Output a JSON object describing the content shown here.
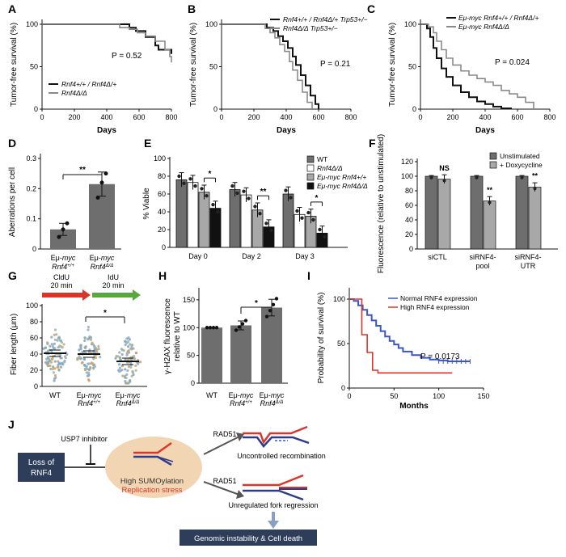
{
  "panels": {
    "A": {
      "label": "A"
    },
    "B": {
      "label": "B"
    },
    "C": {
      "label": "C"
    },
    "D": {
      "label": "D"
    },
    "E": {
      "label": "E"
    },
    "F": {
      "label": "F"
    },
    "G": {
      "label": "G"
    },
    "H": {
      "label": "H"
    },
    "I": {
      "label": "I"
    },
    "J": {
      "label": "J"
    }
  },
  "colors": {
    "black": "#111111",
    "gray": "#8a8a8a",
    "red": "#d9362b",
    "blue": "#3a57c4",
    "peach": "#f2d6b3",
    "navy": "#2d3d5a",
    "green": "#5aa83d"
  },
  "chart_data": [
    {
      "id": "A",
      "type": "line",
      "subtype": "kaplan-meier",
      "ylabel": "Tumor-free survival (%)",
      "xlabel": "Days",
      "xlim": [
        0,
        800
      ],
      "ylim": [
        0,
        100
      ],
      "xticks": [
        "0",
        "200",
        "400",
        "600",
        "800"
      ],
      "yticks": [
        "0",
        "50",
        "100"
      ],
      "pvalue": "P = 0.52",
      "series": [
        {
          "name": "Rnf4+/+ / Rnf4Δ/+",
          "color": "#111111",
          "x": [
            0,
            500,
            540,
            580,
            640,
            700,
            720,
            800
          ],
          "y": [
            100,
            100,
            96,
            92,
            85,
            75,
            70,
            65
          ]
        },
        {
          "name": "Rnf4Δ/Δ",
          "color": "#8a8a8a",
          "x": [
            0,
            420,
            480,
            540,
            590,
            640,
            700,
            760,
            790,
            800
          ],
          "y": [
            100,
            100,
            96,
            94,
            90,
            86,
            80,
            70,
            62,
            55
          ]
        }
      ]
    },
    {
      "id": "B",
      "type": "line",
      "subtype": "kaplan-meier",
      "ylabel": "Tumor-free survival (%)",
      "xlabel": "Days",
      "xlim": [
        0,
        800
      ],
      "ylim": [
        0,
        100
      ],
      "xticks": [
        "0",
        "200",
        "400",
        "600",
        "800"
      ],
      "yticks": [
        "0",
        "50",
        "100"
      ],
      "pvalue": "P = 0.21",
      "series": [
        {
          "name": "Rnf4+/+ / Rnf4Δ/+ Trp53+/−",
          "color": "#111111",
          "x": [
            0,
            240,
            280,
            320,
            350,
            380,
            410,
            440,
            460,
            490,
            520,
            550,
            580,
            600
          ],
          "y": [
            100,
            100,
            96,
            92,
            86,
            80,
            72,
            62,
            52,
            40,
            28,
            16,
            6,
            0
          ]
        },
        {
          "name": "Rnf4Δ/Δ Trp53+/−",
          "color": "#8a8a8a",
          "x": [
            0,
            230,
            270,
            300,
            330,
            360,
            390,
            420,
            440,
            470,
            500,
            530,
            560
          ],
          "y": [
            100,
            100,
            95,
            90,
            84,
            76,
            68,
            56,
            46,
            34,
            20,
            8,
            0
          ]
        }
      ]
    },
    {
      "id": "C",
      "type": "line",
      "subtype": "kaplan-meier",
      "ylabel": "Tumor-free survival (%)",
      "xlabel": "Days",
      "xlim": [
        0,
        800
      ],
      "ylim": [
        0,
        100
      ],
      "xticks": [
        "0",
        "200",
        "400",
        "600",
        "800"
      ],
      "yticks": [
        "0",
        "50",
        "100"
      ],
      "pvalue": "P = 0.024",
      "series": [
        {
          "name": "Eμ-myc Rnf4+/+ / Rnf4Δ/+",
          "color": "#111111",
          "x": [
            0,
            40,
            60,
            80,
            100,
            130,
            160,
            200,
            250,
            300,
            350,
            400,
            450,
            500,
            560
          ],
          "y": [
            100,
            95,
            85,
            72,
            60,
            48,
            38,
            28,
            20,
            14,
            9,
            6,
            3,
            1,
            0
          ]
        },
        {
          "name": "Eμ-myc Rnf4Δ/Δ",
          "color": "#8a8a8a",
          "x": [
            0,
            50,
            80,
            100,
            130,
            160,
            200,
            250,
            300,
            350,
            400,
            450,
            500,
            550,
            600,
            650,
            700
          ],
          "y": [
            100,
            97,
            90,
            80,
            70,
            60,
            52,
            45,
            40,
            36,
            32,
            28,
            22,
            18,
            14,
            8,
            0
          ]
        }
      ]
    },
    {
      "id": "D",
      "type": "bar",
      "ylabel": "Aberrations per cell",
      "ylim": [
        0,
        0.3
      ],
      "yticks": [
        "0",
        "0.1",
        "0.2",
        "0.3"
      ],
      "categories": [
        "Eμ-myc Rnf4+/+",
        "Eμ-myc Rnf4Δ/Δ"
      ],
      "values": [
        0.065,
        0.215
      ],
      "errors": [
        0.02,
        0.04
      ],
      "points": [
        [
          0.04,
          0.065,
          0.085
        ],
        [
          0.17,
          0.22,
          0.25
        ]
      ],
      "significance": "**"
    },
    {
      "id": "E",
      "type": "bar",
      "ylabel": "% Viable",
      "ylim": [
        0,
        100
      ],
      "yticks": [
        "0",
        "20",
        "40",
        "60",
        "80",
        "100"
      ],
      "categories": [
        "Day 0",
        "Day 2",
        "Day 3"
      ],
      "series": [
        {
          "name": "WT",
          "color": "#6e6e6e",
          "values": [
            76,
            65,
            60
          ]
        },
        {
          "name": "Rnf4Δ/Δ",
          "color": "#ffffff",
          "values": [
            73,
            59,
            37
          ]
        },
        {
          "name": "Eμ-myc Rnf4+/+",
          "color": "#a8a8a8",
          "values": [
            62,
            42,
            35
          ]
        },
        {
          "name": "Eμ-myc Rnf4Δ/Δ",
          "color": "#111111",
          "values": [
            44,
            23,
            16
          ]
        }
      ],
      "significance": [
        "*",
        "**",
        "*"
      ]
    },
    {
      "id": "F",
      "type": "bar",
      "ylabel": "Fluorescence (relative to unstimulated)",
      "ylim": [
        0,
        120
      ],
      "yticks": [
        "0",
        "20",
        "40",
        "60",
        "80",
        "100",
        "120"
      ],
      "categories": [
        "siCTL",
        "siRNF4-pool",
        "siRNF4-UTR"
      ],
      "series": [
        {
          "name": "Unstimulated",
          "color": "#6e6e6e",
          "values": [
            100,
            100,
            100
          ]
        },
        {
          "name": "+ Doxycycline",
          "color": "#a8a8a8",
          "values": [
            96,
            66,
            85
          ]
        }
      ],
      "significance": [
        "NS",
        "**",
        "**"
      ]
    },
    {
      "id": "G",
      "type": "scatter",
      "subtype": "dot-plot",
      "ylabel": "Fiber length (μm)",
      "ylim": [
        0,
        100
      ],
      "yticks": [
        "0",
        "20",
        "40",
        "60",
        "80",
        "100"
      ],
      "categories": [
        "WT",
        "Eμ-myc Rnf4+/+",
        "Eμ-myc Rnf4Δ/Δ"
      ],
      "medians": [
        41,
        40,
        31
      ],
      "labeling": [
        {
          "name": "CldU",
          "time": "20 min",
          "color": "#d9362b"
        },
        {
          "name": "IdU",
          "time": "20 min",
          "color": "#5aa83d"
        }
      ],
      "significance": "*"
    },
    {
      "id": "H",
      "type": "bar",
      "ylabel": "γ-H2AX fluorescence relative to WT",
      "ylim": [
        0,
        160
      ],
      "yticks": [
        "0",
        "50",
        "100",
        "150"
      ],
      "categories": [
        "WT",
        "Eμ-myc Rnf4+/+",
        "Eμ-myc Rnf4Δ/Δ"
      ],
      "values": [
        100,
        104,
        136
      ],
      "errors": [
        0,
        8,
        15
      ],
      "significance": "*"
    },
    {
      "id": "I",
      "type": "line",
      "subtype": "kaplan-meier",
      "ylabel": "Probability of survival (%)",
      "xlabel": "Months",
      "xlim": [
        0,
        150
      ],
      "ylim": [
        0,
        100
      ],
      "xticks": [
        "0",
        "50",
        "100",
        "150"
      ],
      "yticks": [
        "0",
        "50",
        "100"
      ],
      "pvalue": "P = 0.0173",
      "series": [
        {
          "name": "Normal RNF4 expression",
          "color": "#3a57c4",
          "x": [
            0,
            5,
            10,
            15,
            20,
            25,
            30,
            35,
            40,
            45,
            50,
            55,
            60,
            70,
            80,
            90,
            100,
            110,
            120,
            130,
            135
          ],
          "y": [
            100,
            98,
            93,
            88,
            82,
            76,
            70,
            64,
            58,
            53,
            49,
            45,
            41,
            37,
            34,
            32,
            31,
            30,
            30,
            30,
            30
          ]
        },
        {
          "name": "High RNF4 expression",
          "color": "#d9362b",
          "x": [
            0,
            10,
            14,
            20,
            26,
            32,
            115
          ],
          "y": [
            100,
            100,
            60,
            40,
            20,
            17,
            17
          ]
        }
      ]
    }
  ],
  "diagram": {
    "loss_box": "Loss of RNF4",
    "inhibitor": "USP7 inhibitor",
    "high_sumo": "High SUMOylation",
    "rep_stress": "Replication stress",
    "rad51_top": "RAD51",
    "rad51_bottom": "RAD51",
    "uncontrolled": "Uncontrolled recombination",
    "unregulated": "Unregulated fork regression",
    "outcome": "Genomic instability & Cell death"
  }
}
